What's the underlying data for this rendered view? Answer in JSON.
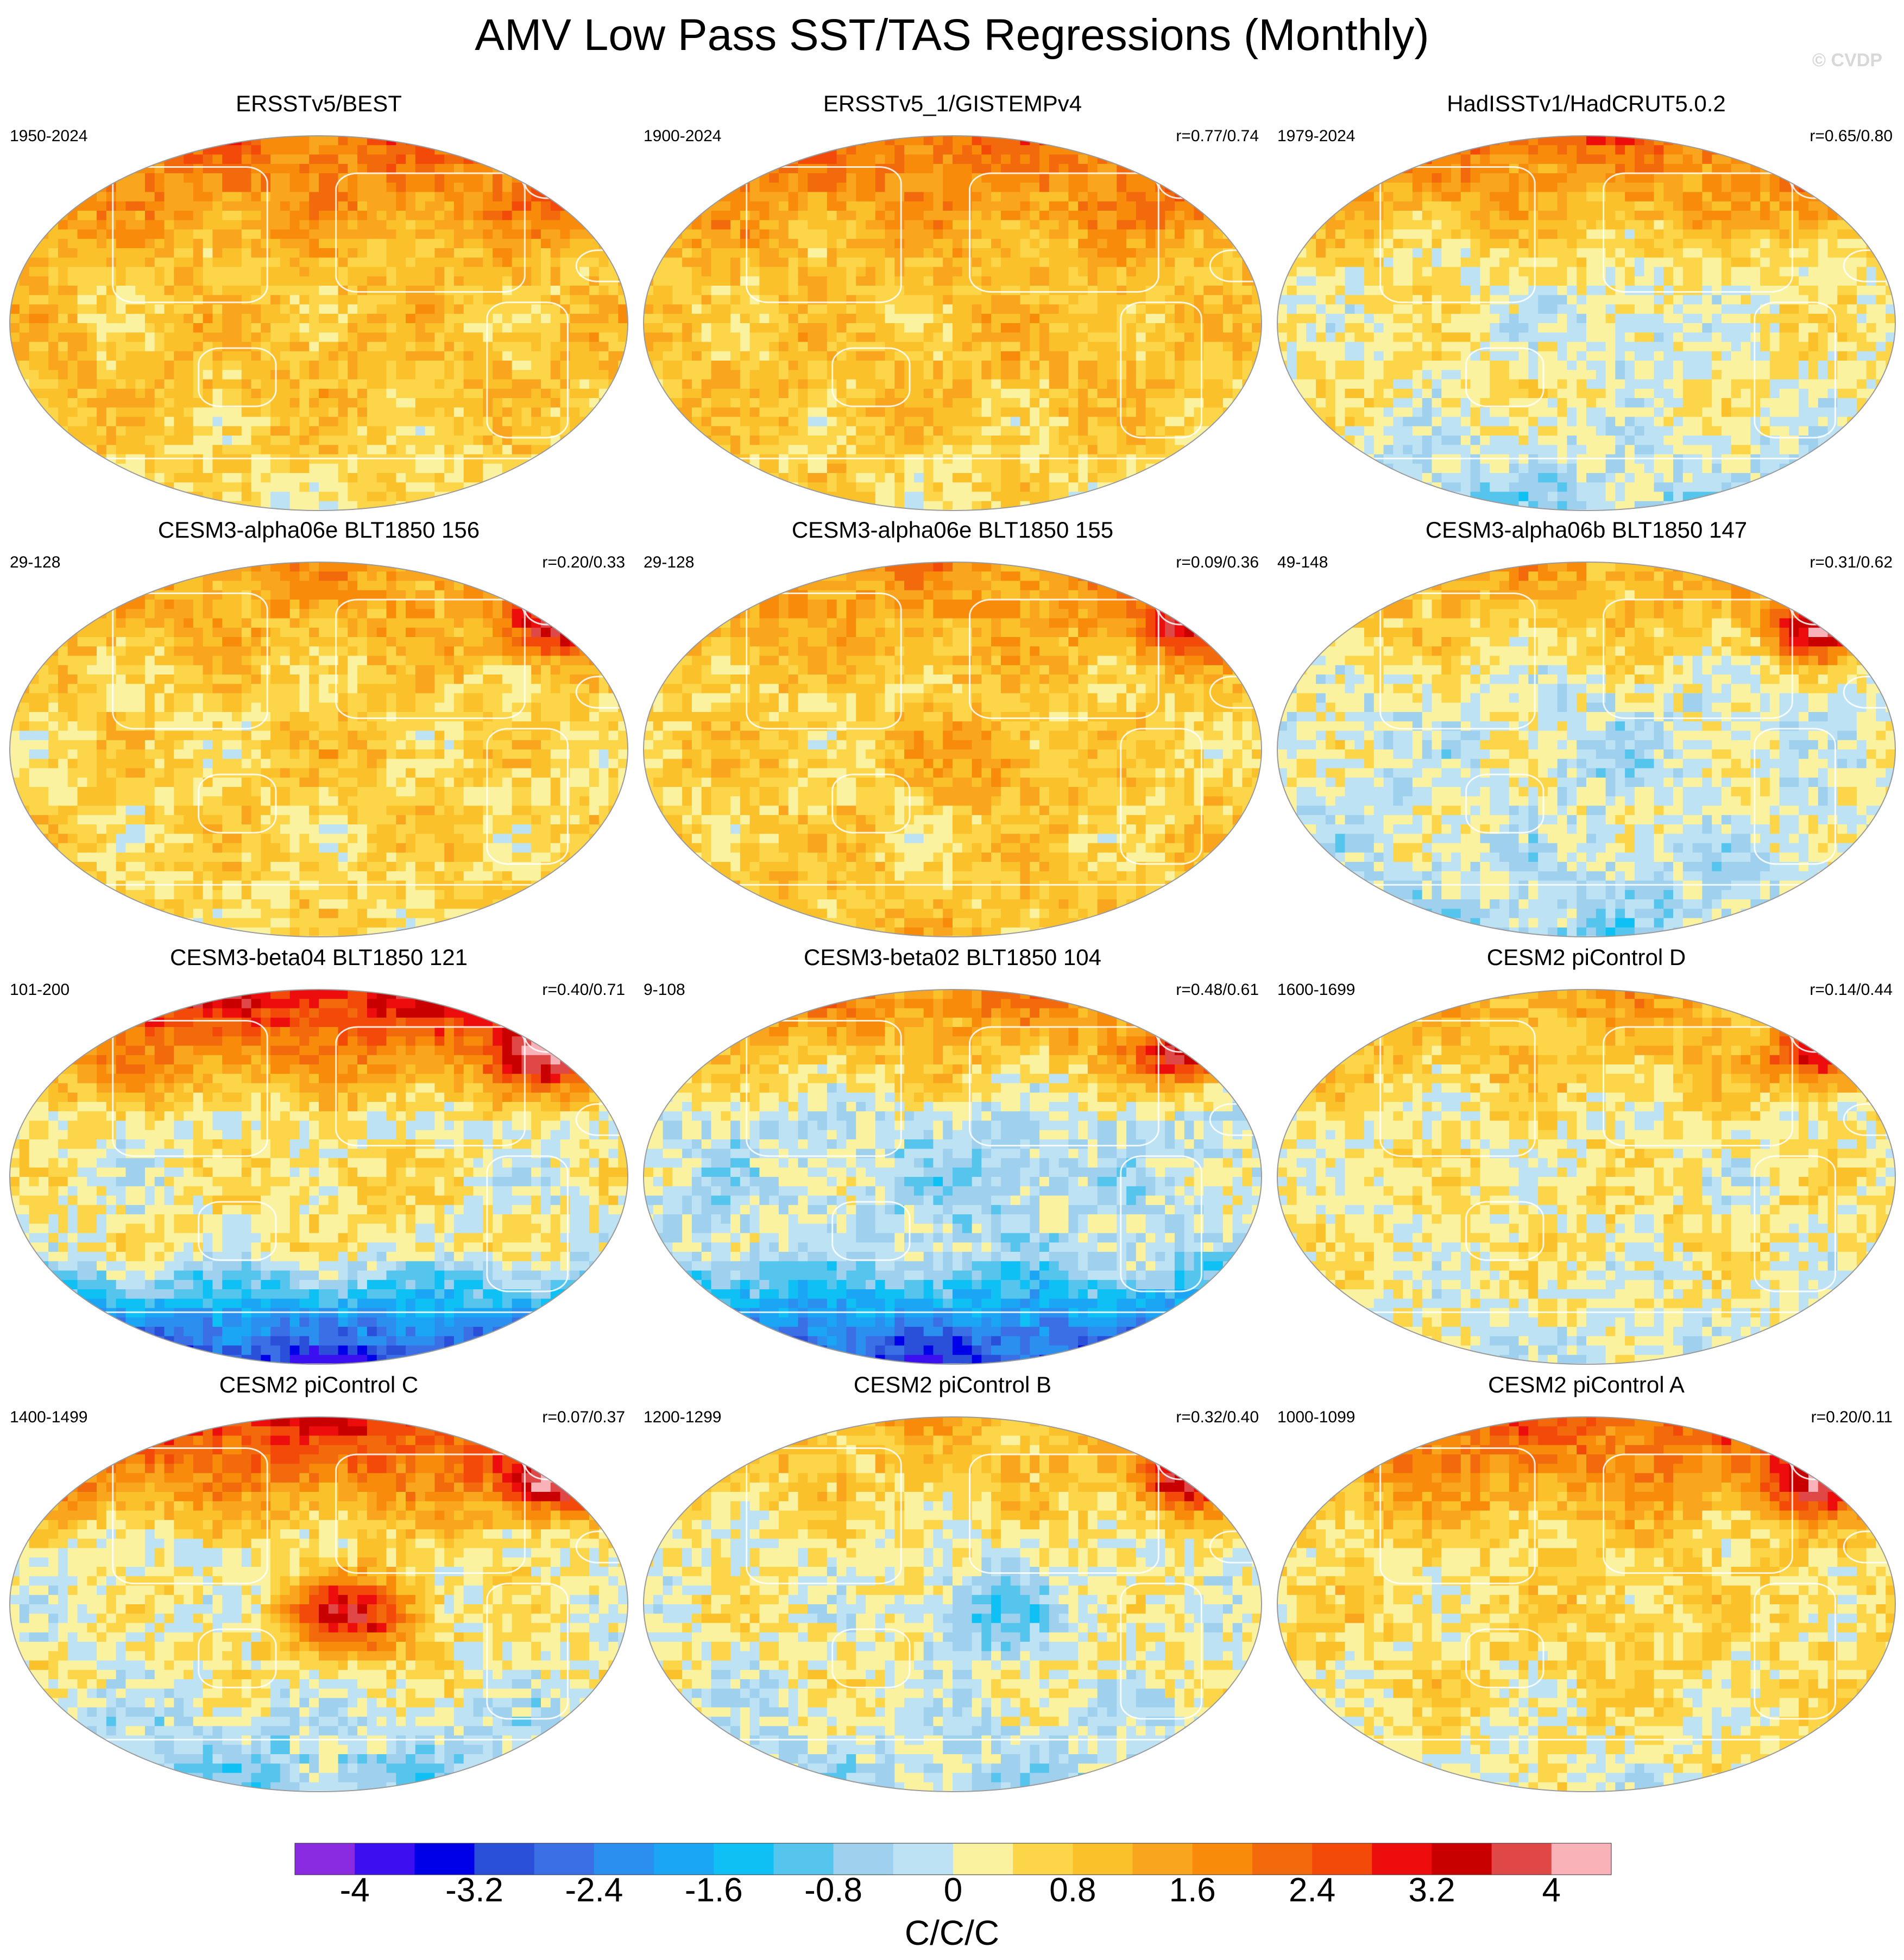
{
  "figure": {
    "title": "AMV Low Pass SST/TAS Regressions (Monthly)",
    "copyright": "© CVDP",
    "units": "C/C/C"
  },
  "chart_data": {
    "type": "heatmap",
    "title": "AMV Low Pass SST/TAS Regressions (Monthly)",
    "projection": "Robinson, Pacific-centered",
    "panels": [
      {
        "name": "ERSSTv5/BEST",
        "period": "1950-2024",
        "correlation": "",
        "pattern": {
          "base": 0.9,
          "nh": 1.1,
          "so": -0.4,
          "natl": 0.7,
          "pac": 0.1,
          "seed": 1
        }
      },
      {
        "name": "ERSSTv5_1/GISTEMPv4",
        "period": "1900-2024",
        "correlation": "r=0.77/0.74",
        "pattern": {
          "base": 0.9,
          "nh": 1.1,
          "so": -0.3,
          "natl": 0.8,
          "pac": 0.1,
          "seed": 2
        }
      },
      {
        "name": "HadISSTv1/HadCRUT5.0.2",
        "period": "1979-2024",
        "correlation": "r=0.65/0.80",
        "pattern": {
          "base": 0.3,
          "nh": 1.6,
          "so": -0.6,
          "natl": 0.9,
          "pac": -0.6,
          "seed": 3
        }
      },
      {
        "name": "CESM3-alpha06e BLT1850 156",
        "period": "29-128",
        "correlation": "r=0.20/0.33",
        "pattern": {
          "base": 0.6,
          "nh": 0.8,
          "so": 0.0,
          "natl": 2.6,
          "pac": 0.3,
          "seed": 4
        }
      },
      {
        "name": "CESM3-alpha06e BLT1850 155",
        "period": "29-128",
        "correlation": "r=0.09/0.36",
        "pattern": {
          "base": 0.7,
          "nh": 0.9,
          "so": 0.2,
          "natl": 2.2,
          "pac": 0.9,
          "seed": 5
        }
      },
      {
        "name": "CESM3-alpha06b BLT1850 147",
        "period": "49-148",
        "correlation": "r=0.31/0.62",
        "pattern": {
          "base": 0.0,
          "nh": 1.2,
          "so": -0.4,
          "natl": 3.0,
          "pac": -0.3,
          "seed": 6
        }
      },
      {
        "name": "CESM3-beta04 BLT1850 121",
        "period": "101-200",
        "correlation": "r=0.40/0.71",
        "pattern": {
          "base": 0.2,
          "nh": 2.6,
          "so": -2.6,
          "natl": 2.6,
          "pac": 0.6,
          "seed": 7
        }
      },
      {
        "name": "CESM3-beta02 BLT1850 104",
        "period": "9-108",
        "correlation": "r=0.48/0.61",
        "pattern": {
          "base": -0.2,
          "nh": 1.8,
          "so": -2.2,
          "natl": 2.8,
          "pac": -0.5,
          "seed": 8
        }
      },
      {
        "name": "CESM2 piControl D",
        "period": "1600-1699",
        "correlation": "r=0.14/0.44",
        "pattern": {
          "base": 0.3,
          "nh": 0.9,
          "so": -0.3,
          "natl": 2.7,
          "pac": 0.1,
          "seed": 9
        }
      },
      {
        "name": "CESM2 piControl C",
        "period": "1400-1499",
        "correlation": "r=0.07/0.37",
        "pattern": {
          "base": 0.2,
          "nh": 2.4,
          "so": -0.7,
          "natl": 2.6,
          "pac": 3.0,
          "seed": 10
        }
      },
      {
        "name": "CESM2 piControl B",
        "period": "1200-1299",
        "correlation": "r=0.32/0.40",
        "pattern": {
          "base": 0.2,
          "nh": 0.8,
          "so": -0.5,
          "natl": 3.0,
          "pac": -1.2,
          "seed": 11
        }
      },
      {
        "name": "CESM2 piControl A",
        "period": "1000-1099",
        "correlation": "r=0.20/0.11",
        "pattern": {
          "base": 0.5,
          "nh": 1.6,
          "so": -0.3,
          "natl": 2.4,
          "pac": 0.3,
          "seed": 12
        }
      }
    ],
    "colorbar": {
      "levels": [
        -4.4,
        -4,
        -3.6,
        -3.2,
        -2.8,
        -2.4,
        -2,
        -1.6,
        -1.2,
        -0.8,
        -0.4,
        0,
        0.4,
        0.8,
        1.2,
        1.6,
        2,
        2.4,
        2.8,
        3.2,
        3.6,
        4,
        4.4
      ],
      "labels": [
        "-4",
        "-3.2",
        "-2.4",
        "-1.6",
        "-0.8",
        "0",
        "0.8",
        "1.6",
        "2.4",
        "3.2",
        "4"
      ],
      "label_values": [
        -4,
        -3.2,
        -2.4,
        -1.6,
        -0.8,
        0,
        0.8,
        1.6,
        2.4,
        3.2,
        4
      ],
      "colors": [
        "#8a2be2",
        "#3b0ff0",
        "#0000e8",
        "#2a4fd8",
        "#3a6fe6",
        "#2b8ff0",
        "#1aa5f5",
        "#0fc0f5",
        "#55c5ee",
        "#9fd1ee",
        "#bde2f4",
        "#fbf2a0",
        "#fcd549",
        "#fbc12b",
        "#f9a51d",
        "#f98b0b",
        "#f26a0c",
        "#f34a0a",
        "#ee0d0d",
        "#c90000",
        "#e04848",
        "#f8b2b8"
      ],
      "title": "C/C/C"
    }
  }
}
